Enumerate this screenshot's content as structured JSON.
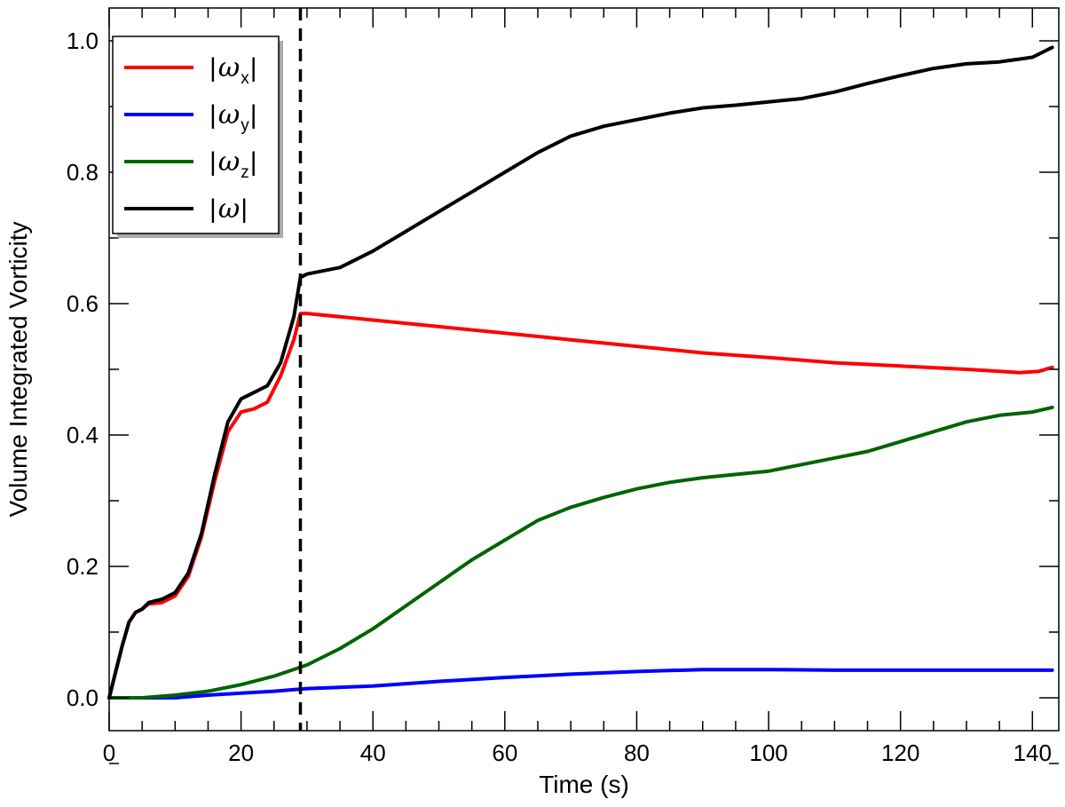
{
  "chart_data": {
    "type": "line",
    "title": "",
    "xlabel": "Time (s)",
    "ylabel": "Volume Integrated Vorticity",
    "xlim": [
      0,
      144
    ],
    "ylim": [
      -0.05,
      1.05
    ],
    "x_ticks": [
      0,
      20,
      40,
      60,
      80,
      100,
      120,
      140
    ],
    "x_tick_labels": [
      "0",
      "20",
      "40",
      "60",
      "80",
      "100",
      "120",
      "140"
    ],
    "y_ticks": [
      0.0,
      0.2,
      0.4,
      0.6,
      0.8,
      1.0
    ],
    "y_tick_labels": [
      "0.0",
      "0.2",
      "0.4",
      "0.6",
      "0.8",
      "1.0"
    ],
    "grid": false,
    "legend_position": "top-left",
    "vertical_marker": {
      "x": 29,
      "style": "dashed",
      "color": "#000000"
    },
    "series": [
      {
        "name": "|ωx|",
        "symbol": "ω",
        "subscript": "x",
        "color": "#ff0000",
        "points": [
          [
            0,
            0.0
          ],
          [
            1,
            0.04
          ],
          [
            2,
            0.08
          ],
          [
            3,
            0.115
          ],
          [
            4,
            0.13
          ],
          [
            5,
            0.135
          ],
          [
            6,
            0.143
          ],
          [
            8,
            0.145
          ],
          [
            10,
            0.155
          ],
          [
            12,
            0.185
          ],
          [
            14,
            0.245
          ],
          [
            16,
            0.33
          ],
          [
            18,
            0.405
          ],
          [
            20,
            0.435
          ],
          [
            22,
            0.44
          ],
          [
            24,
            0.45
          ],
          [
            26,
            0.49
          ],
          [
            28,
            0.545
          ],
          [
            29,
            0.585
          ],
          [
            30,
            0.585
          ],
          [
            35,
            0.58
          ],
          [
            40,
            0.575
          ],
          [
            50,
            0.565
          ],
          [
            60,
            0.555
          ],
          [
            70,
            0.545
          ],
          [
            80,
            0.535
          ],
          [
            90,
            0.525
          ],
          [
            100,
            0.518
          ],
          [
            110,
            0.51
          ],
          [
            120,
            0.505
          ],
          [
            130,
            0.5
          ],
          [
            138,
            0.495
          ],
          [
            141,
            0.497
          ],
          [
            143,
            0.503
          ]
        ]
      },
      {
        "name": "|ωy|",
        "symbol": "ω",
        "subscript": "y",
        "color": "#0000ff",
        "points": [
          [
            0,
            0.0
          ],
          [
            5,
            0.0
          ],
          [
            10,
            0.0
          ],
          [
            15,
            0.004
          ],
          [
            20,
            0.007
          ],
          [
            25,
            0.01
          ],
          [
            30,
            0.014
          ],
          [
            40,
            0.018
          ],
          [
            50,
            0.025
          ],
          [
            60,
            0.031
          ],
          [
            70,
            0.036
          ],
          [
            80,
            0.04
          ],
          [
            90,
            0.043
          ],
          [
            100,
            0.043
          ],
          [
            110,
            0.042
          ],
          [
            120,
            0.042
          ],
          [
            130,
            0.042
          ],
          [
            143,
            0.042
          ]
        ]
      },
      {
        "name": "|ωz|",
        "symbol": "ω",
        "subscript": "z",
        "color": "#006400",
        "points": [
          [
            0,
            0.0
          ],
          [
            5,
            0.0
          ],
          [
            10,
            0.004
          ],
          [
            15,
            0.01
          ],
          [
            20,
            0.02
          ],
          [
            25,
            0.033
          ],
          [
            30,
            0.05
          ],
          [
            35,
            0.075
          ],
          [
            40,
            0.105
          ],
          [
            45,
            0.14
          ],
          [
            50,
            0.175
          ],
          [
            55,
            0.21
          ],
          [
            60,
            0.24
          ],
          [
            65,
            0.27
          ],
          [
            70,
            0.29
          ],
          [
            75,
            0.305
          ],
          [
            80,
            0.318
          ],
          [
            85,
            0.328
          ],
          [
            90,
            0.335
          ],
          [
            95,
            0.34
          ],
          [
            100,
            0.345
          ],
          [
            105,
            0.355
          ],
          [
            110,
            0.365
          ],
          [
            115,
            0.375
          ],
          [
            120,
            0.39
          ],
          [
            125,
            0.405
          ],
          [
            130,
            0.42
          ],
          [
            135,
            0.43
          ],
          [
            140,
            0.435
          ],
          [
            143,
            0.442
          ]
        ]
      },
      {
        "name": "|ω|",
        "symbol": "ω",
        "subscript": "",
        "color": "#000000",
        "points": [
          [
            0,
            0.0
          ],
          [
            1,
            0.04
          ],
          [
            2,
            0.08
          ],
          [
            3,
            0.115
          ],
          [
            4,
            0.13
          ],
          [
            5,
            0.135
          ],
          [
            6,
            0.145
          ],
          [
            8,
            0.15
          ],
          [
            10,
            0.16
          ],
          [
            12,
            0.19
          ],
          [
            14,
            0.25
          ],
          [
            16,
            0.34
          ],
          [
            18,
            0.42
          ],
          [
            20,
            0.455
          ],
          [
            22,
            0.465
          ],
          [
            24,
            0.475
          ],
          [
            26,
            0.51
          ],
          [
            28,
            0.58
          ],
          [
            29,
            0.64
          ],
          [
            30,
            0.645
          ],
          [
            35,
            0.655
          ],
          [
            40,
            0.68
          ],
          [
            45,
            0.71
          ],
          [
            50,
            0.74
          ],
          [
            55,
            0.77
          ],
          [
            60,
            0.8
          ],
          [
            65,
            0.83
          ],
          [
            70,
            0.855
          ],
          [
            75,
            0.87
          ],
          [
            80,
            0.88
          ],
          [
            85,
            0.89
          ],
          [
            90,
            0.898
          ],
          [
            95,
            0.902
          ],
          [
            100,
            0.907
          ],
          [
            105,
            0.912
          ],
          [
            110,
            0.922
          ],
          [
            115,
            0.935
          ],
          [
            120,
            0.947
          ],
          [
            125,
            0.958
          ],
          [
            130,
            0.965
          ],
          [
            135,
            0.968
          ],
          [
            140,
            0.975
          ],
          [
            143,
            0.99
          ]
        ]
      }
    ]
  }
}
